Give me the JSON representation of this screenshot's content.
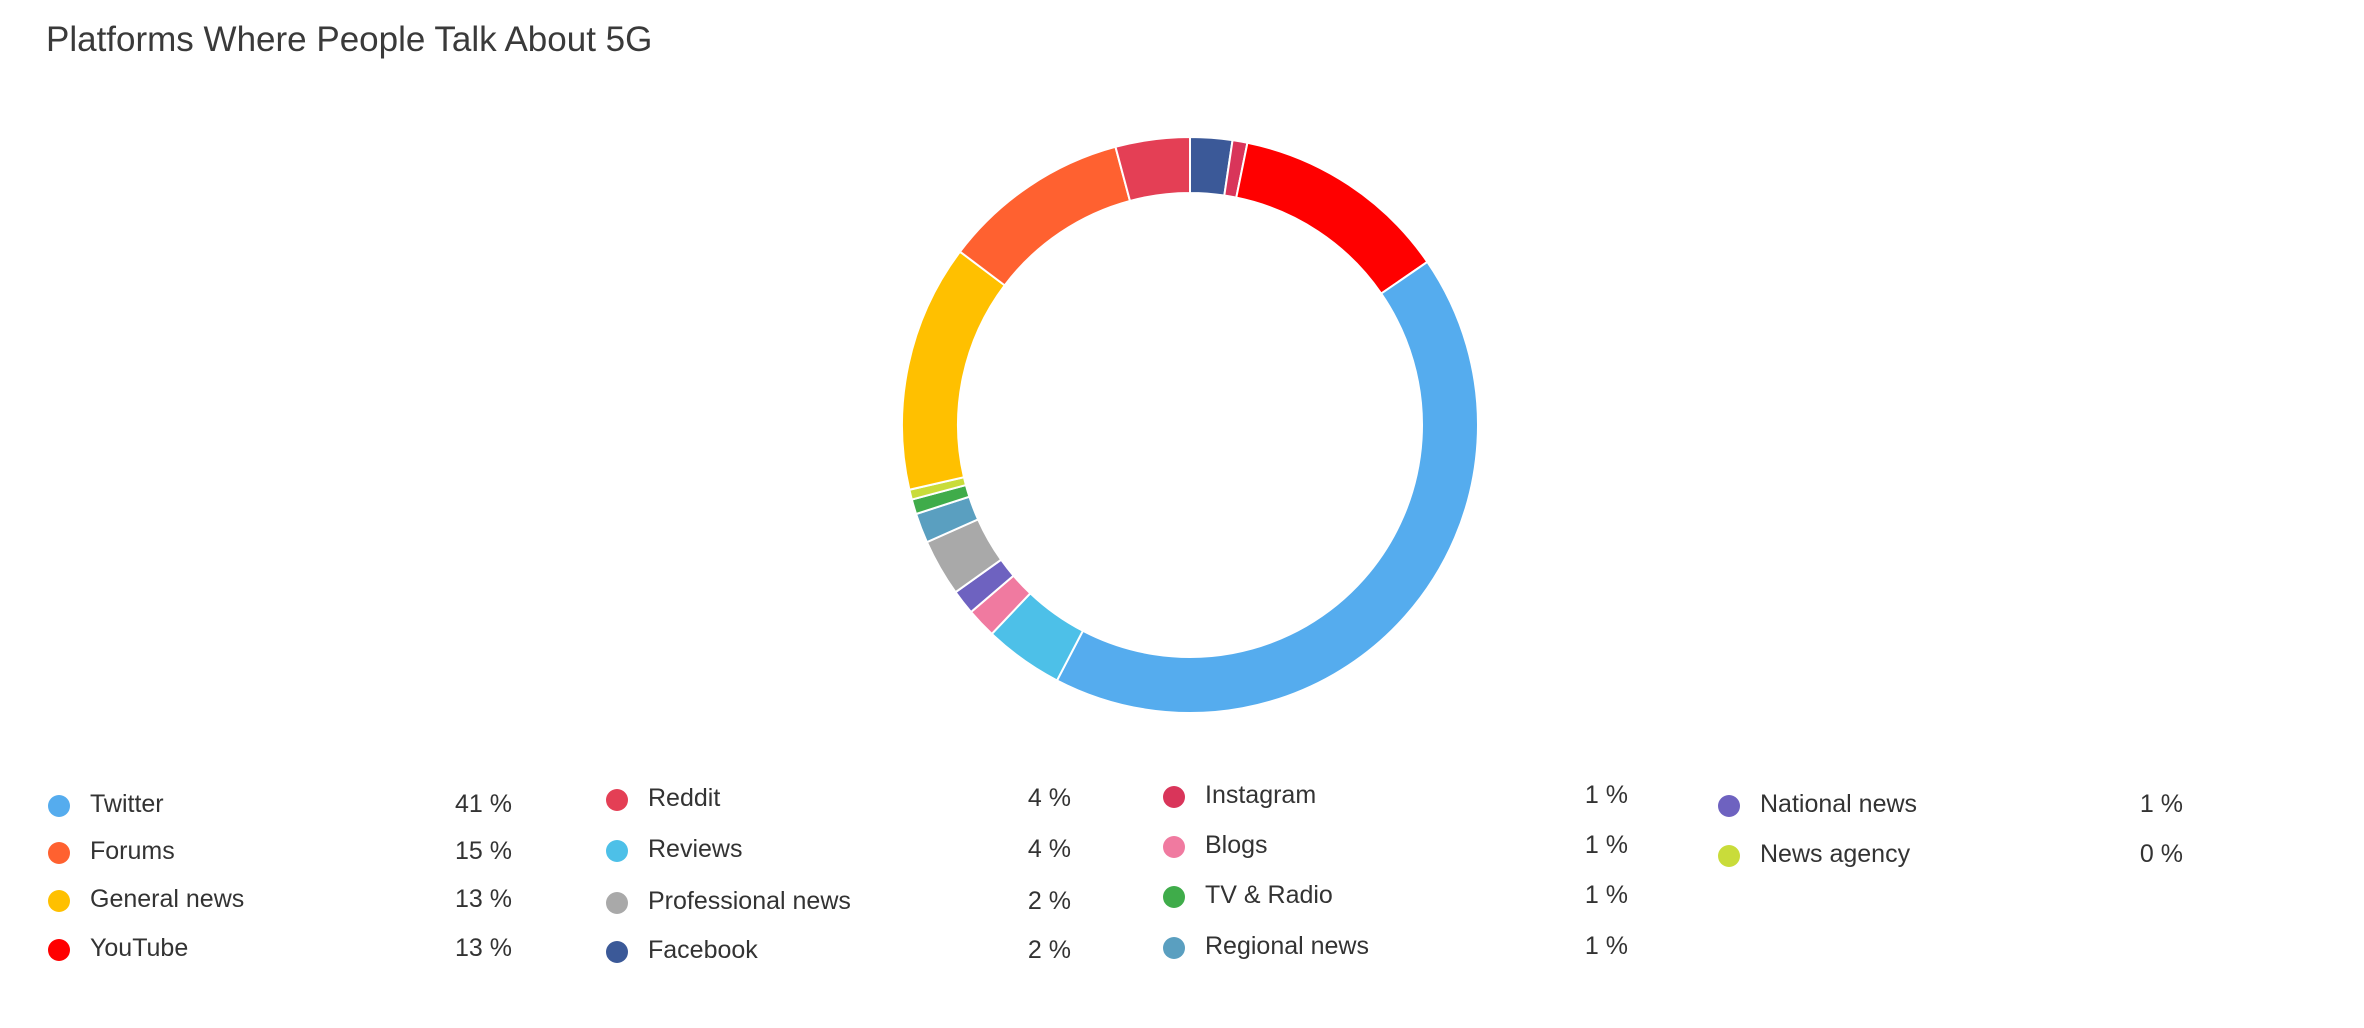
{
  "chart_data": {
    "type": "pie",
    "title": "Platforms Where People Talk About 5G",
    "slices": [
      {
        "label": "Twitter",
        "value": 41,
        "display": "41 %",
        "color": "#55acee"
      },
      {
        "label": "Forums",
        "value": 15,
        "display": "15 %",
        "color": "#ff6130"
      },
      {
        "label": "General news",
        "value": 13,
        "display": "13 %",
        "color": "#ffc000"
      },
      {
        "label": "YouTube",
        "value": 13,
        "display": "13 %",
        "color": "#ff0000"
      },
      {
        "label": "Reddit",
        "value": 4,
        "display": "4 %",
        "color": "#e43f55"
      },
      {
        "label": "Reviews",
        "value": 4,
        "display": "4 %",
        "color": "#4dc0e8"
      },
      {
        "label": "Professional news",
        "value": 2,
        "display": "2 %",
        "color": "#a9a9a9"
      },
      {
        "label": "Facebook",
        "value": 2,
        "display": "2 %",
        "color": "#3b5998"
      },
      {
        "label": "Instagram",
        "value": 1,
        "display": "1 %",
        "color": "#d9355a"
      },
      {
        "label": "Blogs",
        "value": 1,
        "display": "1 %",
        "color": "#f07aa0"
      },
      {
        "label": "TV & Radio",
        "value": 1,
        "display": "1 %",
        "color": "#3fac4a"
      },
      {
        "label": "Regional news",
        "value": 1,
        "display": "1 %",
        "color": "#5a9fc0"
      },
      {
        "label": "National news",
        "value": 1,
        "display": "1 %",
        "color": "#6e62c0"
      },
      {
        "label": "News agency",
        "value": 0,
        "display": "0 %",
        "color": "#c9dc3a"
      }
    ],
    "slice_order": [
      "Facebook",
      "Instagram",
      "YouTube",
      "Twitter",
      "Reviews",
      "Blogs",
      "National news",
      "Professional news",
      "Regional news",
      "TV & Radio",
      "News agency",
      "General news",
      "Forums",
      "Reddit"
    ],
    "legend_position": "bottom",
    "donut": true
  }
}
